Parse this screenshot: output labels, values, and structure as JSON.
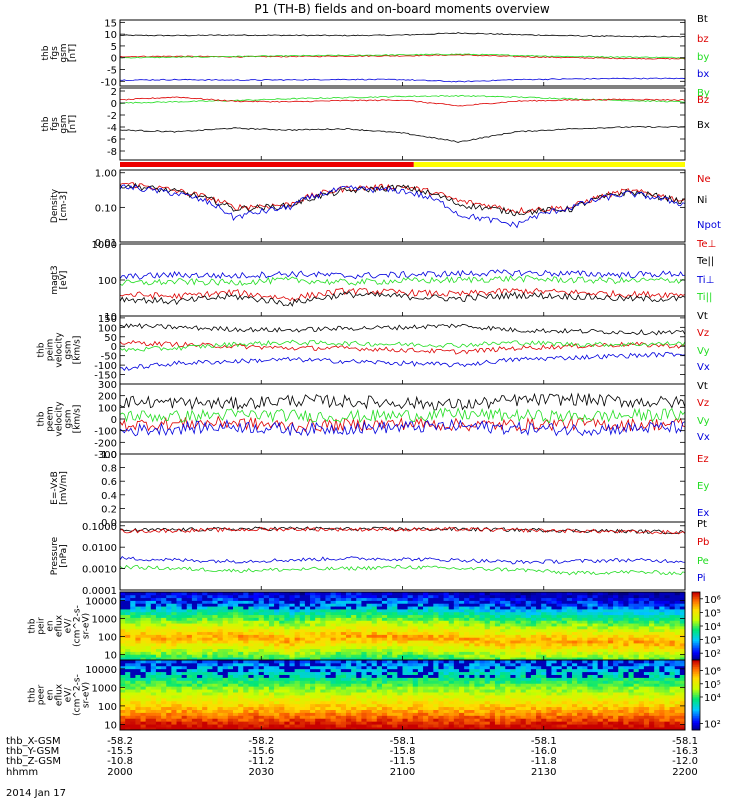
{
  "title": "P1 (TH-B) fields and on-board moments overview",
  "date_label": "2014 Jan 17",
  "colors": {
    "black": "#000000",
    "red": "#dd0000",
    "green": "#22dd22",
    "blue": "#0000dd",
    "yellow": "#ffff00",
    "bar_red": "#ee0000"
  },
  "chart_data": [
    {
      "type": "line",
      "id": "fgs_b",
      "ylabel": [
        "thb",
        "fgs",
        "gsm",
        "[nT]"
      ],
      "ylim": [
        -12,
        16
      ],
      "ticks": [
        15,
        10,
        5,
        0,
        -5,
        -10
      ],
      "series": [
        {
          "name": "Bt",
          "color": "black",
          "values": [
            9.5,
            9.4,
            9.6,
            9.5,
            9.4,
            9.6,
            10.5,
            9.8,
            9.3,
            9.0,
            8.9
          ]
        },
        {
          "name": "bz",
          "color": "red",
          "values": [
            0.5,
            0.6,
            0.4,
            0.5,
            0.7,
            0.8,
            1.2,
            0.5,
            0.0,
            -0.3,
            -0.5
          ]
        },
        {
          "name": "by",
          "color": "green",
          "values": [
            0.0,
            0.2,
            0.5,
            0.8,
            1.0,
            1.2,
            1.5,
            1.0,
            0.5,
            0.3,
            0.0
          ]
        },
        {
          "name": "bx",
          "color": "blue",
          "values": [
            -9.5,
            -9.3,
            -9.5,
            -9.4,
            -9.2,
            -9.3,
            -10.2,
            -9.3,
            -9.0,
            -8.8,
            -8.8
          ]
        }
      ]
    },
    {
      "type": "line",
      "id": "fgs_b_zoom",
      "ylabel": [
        "thb",
        "fgs",
        "gsm",
        "[nT]"
      ],
      "ylim": [
        -9.5,
        2.5
      ],
      "ticks": [
        2,
        0,
        -2,
        -4,
        -6,
        -8
      ],
      "series": [
        {
          "name": "By",
          "color": "green",
          "values": [
            0.0,
            0.2,
            0.4,
            0.7,
            0.9,
            1.1,
            1.2,
            1.0,
            0.7,
            0.4,
            0.2
          ]
        },
        {
          "name": "Bz",
          "color": "red",
          "values": [
            0.5,
            1.0,
            0.3,
            0.2,
            0.4,
            0.5,
            -0.5,
            0.3,
            0.5,
            0.6,
            0.5
          ]
        },
        {
          "name": "Bx",
          "color": "black",
          "values": [
            -4.5,
            -4.8,
            -4.2,
            -4.5,
            -4.3,
            -5.0,
            -6.5,
            -4.8,
            -4.3,
            -4.0,
            -4.0
          ]
        }
      ]
    },
    {
      "type": "line",
      "id": "density",
      "yscale": "log",
      "ylabel": [
        "Density",
        "[cm-3]"
      ],
      "ylim": [
        0.01,
        1.2
      ],
      "ticks": [
        1.0,
        0.1,
        0.01
      ],
      "tick_labels": [
        "1.00",
        "0.10",
        "0.01"
      ],
      "series": [
        {
          "name": "Ne",
          "color": "red",
          "values": [
            0.5,
            0.3,
            0.1,
            0.12,
            0.35,
            0.4,
            0.15,
            0.08,
            0.1,
            0.3,
            0.15
          ]
        },
        {
          "name": "Ni",
          "color": "black",
          "values": [
            0.45,
            0.28,
            0.09,
            0.11,
            0.3,
            0.38,
            0.12,
            0.07,
            0.09,
            0.28,
            0.14
          ]
        },
        {
          "name": "Npot",
          "color": "blue",
          "values": [
            0.4,
            0.25,
            0.05,
            0.1,
            0.35,
            0.3,
            0.06,
            0.03,
            0.1,
            0.25,
            0.12
          ]
        }
      ]
    },
    {
      "type": "line",
      "id": "temperature",
      "yscale": "log",
      "ylabel": [
        "magt3",
        "[eV]"
      ],
      "ylim": [
        10,
        1000
      ],
      "ticks": [
        1000,
        100,
        10
      ],
      "tick_labels": [
        "1000",
        "100",
        "10"
      ],
      "series": [
        {
          "name": "Te⊥",
          "color": "red",
          "values": [
            40,
            35,
            45,
            30,
            50,
            45,
            40,
            50,
            45,
            40,
            40
          ]
        },
        {
          "name": "Te||",
          "color": "black",
          "values": [
            30,
            25,
            35,
            22,
            40,
            35,
            30,
            38,
            35,
            30,
            30
          ]
        },
        {
          "name": "Ti⊥",
          "color": "blue",
          "values": [
            120,
            140,
            130,
            150,
            130,
            140,
            150,
            160,
            150,
            140,
            150
          ]
        },
        {
          "name": "Ti||",
          "color": "green",
          "values": [
            80,
            90,
            85,
            100,
            85,
            95,
            100,
            110,
            100,
            95,
            100
          ]
        }
      ]
    },
    {
      "type": "line",
      "id": "peim_velocity",
      "ylabel": [
        "thb",
        "peim",
        "velocity",
        "gsm",
        "[km/s]"
      ],
      "ylim": [
        -200,
        160
      ],
      "ticks": [
        150,
        100,
        50,
        0,
        -50,
        -100,
        -150
      ],
      "series": [
        {
          "name": "Vt",
          "color": "black",
          "values": [
            110,
            100,
            90,
            85,
            95,
            100,
            110,
            85,
            80,
            75,
            70
          ]
        },
        {
          "name": "Vz",
          "color": "red",
          "values": [
            20,
            10,
            0,
            -10,
            -10,
            -20,
            -30,
            -10,
            0,
            10,
            0
          ]
        },
        {
          "name": "Vy",
          "color": "green",
          "values": [
            -20,
            -10,
            10,
            20,
            15,
            10,
            5,
            20,
            10,
            10,
            15
          ]
        },
        {
          "name": "Vx",
          "color": "blue",
          "values": [
            -120,
            -90,
            -80,
            -70,
            -80,
            -90,
            -100,
            -70,
            -60,
            -50,
            -40
          ]
        }
      ]
    },
    {
      "type": "line",
      "id": "peem_velocity",
      "ylabel": [
        "thb",
        "peem",
        "velocity",
        "gsm",
        "[km/s]"
      ],
      "ylim": [
        -300,
        300
      ],
      "ticks": [
        300,
        200,
        100,
        0,
        -100,
        -200,
        -300
      ],
      "series": [
        {
          "name": "Vt",
          "color": "black",
          "values": [
            150,
            140,
            130,
            160,
            150,
            140,
            120,
            160,
            170,
            150,
            140
          ]
        },
        {
          "name": "Vz",
          "color": "red",
          "values": [
            -50,
            -40,
            -30,
            -60,
            -50,
            -40,
            -50,
            -50,
            -40,
            -50,
            -40
          ]
        },
        {
          "name": "Vy",
          "color": "green",
          "values": [
            30,
            20,
            40,
            30,
            20,
            30,
            40,
            30,
            20,
            30,
            40
          ]
        },
        {
          "name": "Vx",
          "color": "blue",
          "values": [
            -100,
            -80,
            -60,
            -90,
            -80,
            -70,
            -60,
            -80,
            -90,
            -80,
            -70
          ]
        }
      ]
    },
    {
      "type": "line",
      "id": "efield",
      "ylabel": [
        "E=-VxB",
        "[mV/m]"
      ],
      "ylim": [
        0,
        1
      ],
      "ticks": [
        1.0,
        0.8,
        0.6,
        0.4,
        0.2,
        0.0
      ],
      "tick_labels": [
        "1.0",
        "0.8",
        "0.6",
        "0.4",
        "0.2",
        "0.0"
      ],
      "series": [
        {
          "name": "Ez",
          "color": "red",
          "values": []
        },
        {
          "name": "Ey",
          "color": "green",
          "values": []
        },
        {
          "name": "Ex",
          "color": "blue",
          "values": []
        }
      ]
    },
    {
      "type": "line",
      "id": "pressure",
      "yscale": "log",
      "ylabel": [
        "Pressure",
        "[nPa]"
      ],
      "ylim": [
        0.0001,
        0.15
      ],
      "ticks": [
        0.1,
        0.01,
        0.001,
        0.0001
      ],
      "tick_labels": [
        "0.1000",
        "0.0100",
        "0.0010",
        "0.0001"
      ],
      "series": [
        {
          "name": "Pt",
          "color": "black",
          "values": [
            0.06,
            0.065,
            0.07,
            0.075,
            0.07,
            0.07,
            0.07,
            0.065,
            0.06,
            0.055,
            0.05
          ]
        },
        {
          "name": "Pb",
          "color": "red",
          "values": [
            0.055,
            0.06,
            0.065,
            0.07,
            0.068,
            0.068,
            0.068,
            0.062,
            0.058,
            0.052,
            0.048
          ]
        },
        {
          "name": "Pe",
          "color": "green",
          "values": [
            0.0012,
            0.001,
            0.0008,
            0.0009,
            0.001,
            0.0012,
            0.001,
            0.0009,
            0.0006,
            0.0007,
            0.0006
          ]
        },
        {
          "name": "Pi",
          "color": "blue",
          "values": [
            0.003,
            0.0025,
            0.0022,
            0.0025,
            0.003,
            0.0028,
            0.0025,
            0.002,
            0.0022,
            0.0025,
            0.0022
          ]
        }
      ]
    },
    {
      "type": "heatmap",
      "id": "peir_spec",
      "ylabel": [
        "thb",
        "peir",
        "en",
        "eflux",
        "eV/",
        "(cm^2-s-",
        "sr-eV)"
      ],
      "ylim": [
        5,
        30000
      ],
      "ticks": [
        10000,
        1000,
        100,
        10
      ],
      "tick_labels": [
        "10000",
        "1000",
        "100",
        "10"
      ],
      "colorbar_ticks": [
        "10⁶",
        "10⁵",
        "10⁴",
        "10³",
        "10²"
      ],
      "colorbar_exponents": [
        6,
        5,
        4,
        3,
        2
      ],
      "colorbar_range": [
        1.5,
        6.5
      ],
      "peak_energy_eV": [
        100,
        90,
        110,
        60,
        120,
        100,
        80,
        50,
        60,
        50,
        50
      ]
    },
    {
      "type": "heatmap",
      "id": "peer_spec",
      "ylabel": [
        "thb",
        "peer",
        "en",
        "eflux",
        "eV/",
        "(cm^2-s-",
        "sr-eV)"
      ],
      "ylim": [
        5,
        30000
      ],
      "ticks": [
        10000,
        1000,
        100,
        10
      ],
      "tick_labels": [
        "10000",
        "1000",
        "100",
        "10"
      ],
      "colorbar_ticks": [
        "10⁶",
        "10⁵",
        "10⁴",
        "10²"
      ],
      "colorbar_exponents": [
        6,
        5,
        4,
        2
      ],
      "colorbar_range": [
        1.5,
        6.8
      ],
      "peak_energy_eV": [
        10,
        10,
        10,
        10,
        10,
        10,
        10,
        10,
        10,
        10,
        10
      ]
    }
  ],
  "time_axis": {
    "labels": [
      "thb_X-GSM",
      "thb_Y-GSM",
      "thb_Z-GSM",
      "hhmm"
    ],
    "columns": [
      [
        "-58.2",
        "-15.5",
        "-10.8",
        "2000"
      ],
      [
        "-58.2",
        "-15.6",
        "-11.2",
        "2030"
      ],
      [
        "-58.1",
        "-15.8",
        "-11.5",
        "2100"
      ],
      [
        "-58.1",
        "-16.0",
        "-11.8",
        "2130"
      ],
      [
        "-58.1",
        "-16.3",
        "-12.0",
        "2200"
      ]
    ]
  },
  "mode_bar": {
    "red_fraction": 0.52
  }
}
